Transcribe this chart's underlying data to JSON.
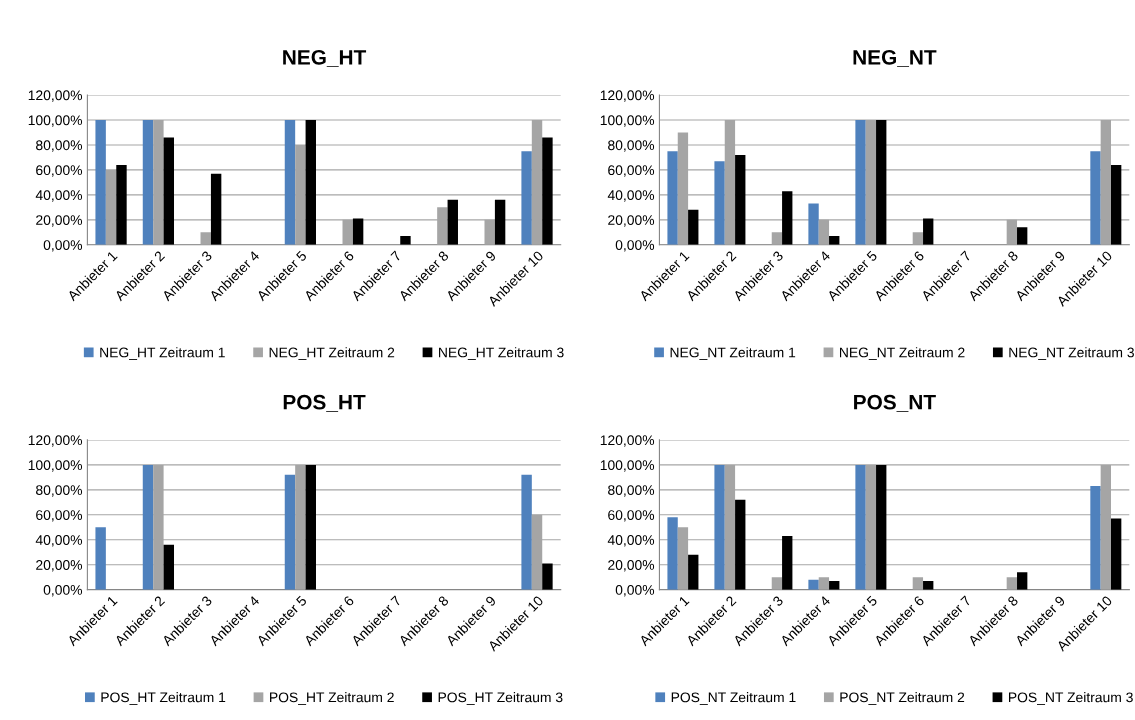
{
  "chart_data": [
    {
      "type": "bar",
      "title": "NEG_HT",
      "categories": [
        "Anbieter 1",
        "Anbieter 2",
        "Anbieter 3",
        "Anbieter 4",
        "Anbieter 5",
        "Anbieter 6",
        "Anbieter 7",
        "Anbieter 8",
        "Anbieter 9",
        "Anbieter 10"
      ],
      "series": [
        {
          "name": "NEG_HT Zeitraum 1",
          "color": "#4f81bd",
          "values": [
            100,
            100,
            0,
            0,
            100,
            0,
            0,
            0,
            0,
            75
          ]
        },
        {
          "name": "NEG_HT Zeitraum 2",
          "color": "#a5a5a5",
          "values": [
            60,
            100,
            10,
            0,
            80,
            20,
            0,
            30,
            20,
            100
          ]
        },
        {
          "name": "NEG_HT Zeitraum 3",
          "color": "#000000",
          "values": [
            64,
            86,
            57,
            0,
            100,
            21,
            7,
            36,
            36,
            86
          ]
        }
      ],
      "ylim": [
        0,
        120
      ],
      "yticks": [
        {
          "value": 0,
          "label": "0,00%"
        },
        {
          "value": 20,
          "label": "20,00%"
        },
        {
          "value": 40,
          "label": "40,00%"
        },
        {
          "value": 60,
          "label": "60,00%"
        },
        {
          "value": 80,
          "label": "80,00%"
        },
        {
          "value": 100,
          "label": "100,00%"
        },
        {
          "value": 120,
          "label": "120,00%"
        }
      ],
      "grid": "y",
      "legend": "bottom"
    },
    {
      "type": "bar",
      "title": "NEG_NT",
      "categories": [
        "Anbieter 1",
        "Anbieter 2",
        "Anbieter 3",
        "Anbieter 4",
        "Anbieter 5",
        "Anbieter 6",
        "Anbieter 7",
        "Anbieter 8",
        "Anbieter 9",
        "Anbieter 10"
      ],
      "series": [
        {
          "name": "NEG_NT Zeitraum 1",
          "color": "#4f81bd",
          "values": [
            75,
            67,
            0,
            33,
            100,
            0,
            0,
            0,
            0,
            75
          ]
        },
        {
          "name": "NEG_NT Zeitraum 2",
          "color": "#a5a5a5",
          "values": [
            90,
            100,
            10,
            20,
            100,
            10,
            0,
            20,
            0,
            100
          ]
        },
        {
          "name": "NEG_NT Zeitraum 3",
          "color": "#000000",
          "values": [
            28,
            72,
            43,
            7,
            100,
            21,
            0,
            14,
            0,
            64
          ]
        }
      ],
      "ylim": [
        0,
        120
      ],
      "yticks": [
        {
          "value": 0,
          "label": "0,00%"
        },
        {
          "value": 20,
          "label": "20,00%"
        },
        {
          "value": 40,
          "label": "40,00%"
        },
        {
          "value": 60,
          "label": "60,00%"
        },
        {
          "value": 80,
          "label": "80,00%"
        },
        {
          "value": 100,
          "label": "100,00%"
        },
        {
          "value": 120,
          "label": "120,00%"
        }
      ],
      "grid": "y",
      "legend": "bottom"
    },
    {
      "type": "bar",
      "title": "POS_HT",
      "categories": [
        "Anbieter 1",
        "Anbieter 2",
        "Anbieter 3",
        "Anbieter 4",
        "Anbieter 5",
        "Anbieter 6",
        "Anbieter 7",
        "Anbieter 8",
        "Anbieter 9",
        "Anbieter 10"
      ],
      "series": [
        {
          "name": "POS_HT Zeitraum 1",
          "color": "#4f81bd",
          "values": [
            50,
            100,
            0,
            0,
            92,
            0,
            0,
            0,
            0,
            92
          ]
        },
        {
          "name": "POS_HT Zeitraum 2",
          "color": "#a5a5a5",
          "values": [
            0,
            100,
            0,
            0,
            100,
            0,
            0,
            0,
            0,
            60
          ]
        },
        {
          "name": "POS_HT Zeitraum 3",
          "color": "#000000",
          "values": [
            0,
            36,
            0,
            0,
            100,
            0,
            0,
            0,
            0,
            21
          ]
        }
      ],
      "ylim": [
        0,
        120
      ],
      "yticks": [
        {
          "value": 0,
          "label": "0,00%"
        },
        {
          "value": 20,
          "label": "20,00%"
        },
        {
          "value": 40,
          "label": "40,00%"
        },
        {
          "value": 60,
          "label": "60,00%"
        },
        {
          "value": 80,
          "label": "80,00%"
        },
        {
          "value": 100,
          "label": "100,00%"
        },
        {
          "value": 120,
          "label": "120,00%"
        }
      ],
      "grid": "y",
      "legend": "bottom"
    },
    {
      "type": "bar",
      "title": "POS_NT",
      "categories": [
        "Anbieter 1",
        "Anbieter 2",
        "Anbieter 3",
        "Anbieter 4",
        "Anbieter 5",
        "Anbieter 6",
        "Anbieter 7",
        "Anbieter 8",
        "Anbieter 9",
        "Anbieter 10"
      ],
      "series": [
        {
          "name": "POS_NT Zeitraum 1",
          "color": "#4f81bd",
          "values": [
            58,
            100,
            0,
            8,
            100,
            0,
            0,
            0,
            0,
            83
          ]
        },
        {
          "name": "POS_NT Zeitraum 2",
          "color": "#a5a5a5",
          "values": [
            50,
            100,
            10,
            10,
            100,
            10,
            0,
            10,
            0,
            100
          ]
        },
        {
          "name": "POS_NT Zeitraum 3",
          "color": "#000000",
          "values": [
            28,
            72,
            43,
            7,
            100,
            7,
            0,
            14,
            0,
            57
          ]
        }
      ],
      "ylim": [
        0,
        120
      ],
      "yticks": [
        {
          "value": 0,
          "label": "0,00%"
        },
        {
          "value": 20,
          "label": "20,00%"
        },
        {
          "value": 40,
          "label": "40,00%"
        },
        {
          "value": 60,
          "label": "60,00%"
        },
        {
          "value": 80,
          "label": "80,00%"
        },
        {
          "value": 100,
          "label": "100,00%"
        },
        {
          "value": 120,
          "label": "120,00%"
        }
      ],
      "grid": "y",
      "legend": "bottom"
    }
  ]
}
